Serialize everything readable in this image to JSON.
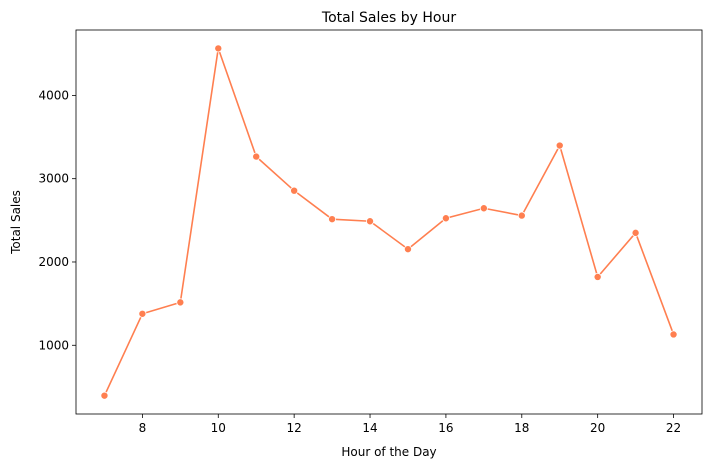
{
  "chart_data": {
    "type": "line",
    "title": "Total Sales by Hour",
    "xlabel": "Hour of the Day",
    "ylabel": "Total Sales",
    "x": [
      7,
      8,
      9,
      10,
      11,
      12,
      13,
      14,
      15,
      16,
      17,
      18,
      19,
      20,
      21,
      22
    ],
    "series": [
      {
        "values": [
          395,
          1378,
          1515,
          4564,
          3265,
          2856,
          2514,
          2489,
          2154,
          2525,
          2645,
          2557,
          3398,
          1820,
          2350,
          1130
        ]
      }
    ],
    "xlim": [
      6.25,
      22.75
    ],
    "ylim": [
      175,
      4785
    ],
    "xticks": [
      8,
      10,
      12,
      14,
      16,
      18,
      20,
      22
    ],
    "yticks": [
      1000,
      2000,
      3000,
      4000
    ],
    "grid": false,
    "marker": "circle",
    "color": "#ff7f50"
  }
}
